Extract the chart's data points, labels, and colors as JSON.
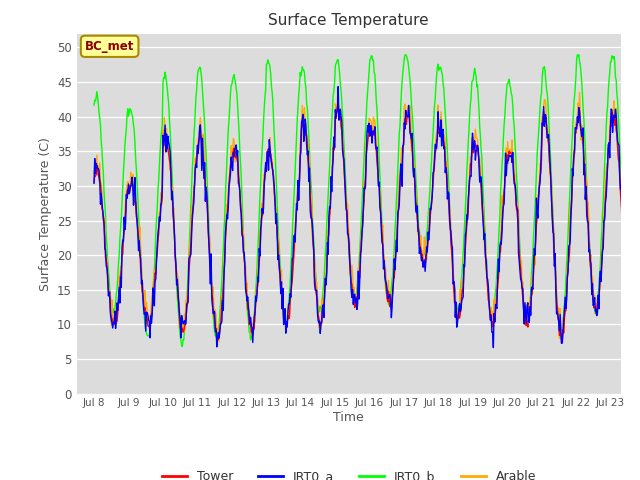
{
  "title": "Surface Temperature",
  "xlabel": "Time",
  "ylabel": "Surface Temperature (C)",
  "ylim": [
    0,
    52
  ],
  "yticks": [
    0,
    5,
    10,
    15,
    20,
    25,
    30,
    35,
    40,
    45,
    50
  ],
  "xlim_days": [
    7.5,
    23.3
  ],
  "xtick_labels": [
    "Jul 8",
    "Jul 9",
    "Jul 10",
    "Jul 11",
    "Jul 12",
    "Jul 13",
    "Jul 14",
    "Jul 15",
    "Jul 16",
    "Jul 17",
    "Jul 18",
    "Jul 19",
    "Jul 20",
    "Jul 21",
    "Jul 22",
    "Jul 23"
  ],
  "xtick_positions": [
    8,
    9,
    10,
    11,
    12,
    13,
    14,
    15,
    16,
    17,
    18,
    19,
    20,
    21,
    22,
    23
  ],
  "colors": {
    "Tower": "#ff0000",
    "IRT0_a": "#0000ff",
    "IRT0_b": "#00ff00",
    "Arable": "#ffaa00"
  },
  "fig_bg_color": "#ffffff",
  "plot_bg_color": "#dcdcdc",
  "annotation_text": "BC_met",
  "annotation_bg": "#ffff99",
  "annotation_border": "#aa8800"
}
